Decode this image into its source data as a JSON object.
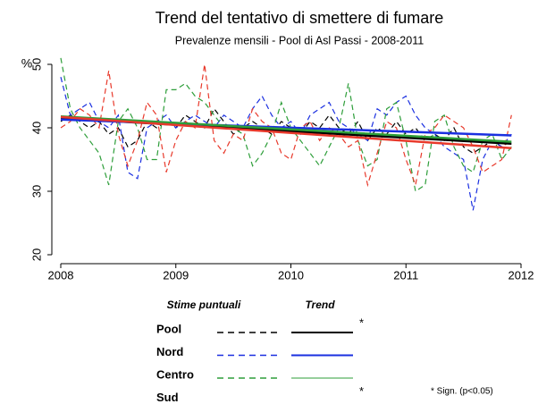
{
  "chart_data": {
    "type": "line",
    "title": "Trend del tentativo di smettere di fumare",
    "subtitle": "Prevalenze mensili - Pool di Asl Passi - 2008-2011",
    "y_label": "%",
    "xlim": [
      2008,
      2012
    ],
    "xticks": [
      2008,
      2009,
      2010,
      2011,
      2012
    ],
    "ylim": [
      20,
      50
    ],
    "yticks": [
      20,
      30,
      40,
      50
    ],
    "x": [
      2008,
      2008.083,
      2008.167,
      2008.25,
      2008.333,
      2008.417,
      2008.5,
      2008.583,
      2008.667,
      2008.75,
      2008.833,
      2008.917,
      2009,
      2009.083,
      2009.167,
      2009.25,
      2009.333,
      2009.417,
      2009.5,
      2009.583,
      2009.667,
      2009.75,
      2009.833,
      2009.917,
      2010,
      2010.083,
      2010.167,
      2010.25,
      2010.333,
      2010.417,
      2010.5,
      2010.583,
      2010.667,
      2010.75,
      2010.833,
      2010.917,
      2011,
      2011.083,
      2011.167,
      2011.25,
      2011.333,
      2011.417,
      2011.5,
      2011.583,
      2011.667,
      2011.75,
      2011.833,
      2011.917
    ],
    "trend_x": [
      2008,
      2011.917
    ],
    "legend_headers": [
      "Stime puntuali",
      "Trend"
    ],
    "significance_mark": "*",
    "note": "* Sign. (p<0.05)",
    "series": [
      {
        "name": "Pool",
        "color": "#000000",
        "significant": true,
        "legend_sample": true,
        "trend": [
          41.5,
          37.5
        ],
        "values": [
          41,
          42,
          41,
          40,
          41,
          39,
          40,
          37,
          38,
          41,
          40,
          41,
          40,
          42,
          41,
          40,
          43,
          41,
          39,
          40,
          41,
          40,
          39,
          41,
          40,
          39,
          41,
          40,
          42,
          40,
          39,
          41,
          38,
          40,
          39,
          41,
          39,
          40,
          38,
          39,
          38,
          40,
          37,
          36,
          37,
          38,
          37,
          38
        ]
      },
      {
        "name": "Nord",
        "color": "#1a2fe0",
        "significant": false,
        "legend_sample": true,
        "trend": [
          41.3,
          38.8
        ],
        "values": [
          48,
          42,
          43,
          44,
          41,
          40,
          42,
          33,
          32,
          40,
          41,
          42,
          40,
          41,
          42,
          41,
          40,
          42,
          41,
          40,
          43,
          45,
          42,
          40,
          41,
          39,
          42,
          43,
          44,
          41,
          40,
          39,
          38,
          43,
          42,
          44,
          45,
          42,
          40,
          39,
          37,
          36,
          35,
          27,
          35,
          38,
          37,
          39
        ]
      },
      {
        "name": "Centro",
        "color": "#2e9e3a",
        "significant": false,
        "legend_sample": true,
        "trend": [
          41.8,
          37.8
        ],
        "values": [
          51,
          43,
          40,
          38,
          36,
          31,
          41,
          43,
          40,
          35,
          35,
          46,
          46,
          47,
          45,
          44,
          42,
          40,
          40,
          39,
          34,
          36,
          39,
          44,
          40,
          38,
          36,
          34,
          37,
          40,
          47,
          38,
          34,
          35,
          43,
          44,
          38,
          30,
          31,
          41,
          42,
          37,
          34,
          33,
          38,
          39,
          35,
          37
        ]
      },
      {
        "name": "Sud",
        "color": "#e8392b",
        "significant": true,
        "legend_sample": false,
        "trend": [
          41.7,
          36.8
        ],
        "values": [
          40,
          41,
          43,
          42,
          40,
          49,
          39,
          34,
          38,
          44,
          42,
          33,
          38,
          41,
          40,
          50,
          38,
          36,
          39,
          38,
          43,
          41,
          40,
          36,
          35,
          40,
          41,
          38,
          40,
          39,
          37,
          38,
          31,
          36,
          41,
          40,
          35,
          31,
          39,
          40,
          42,
          41,
          40,
          37,
          33,
          34,
          35,
          42
        ]
      }
    ]
  }
}
